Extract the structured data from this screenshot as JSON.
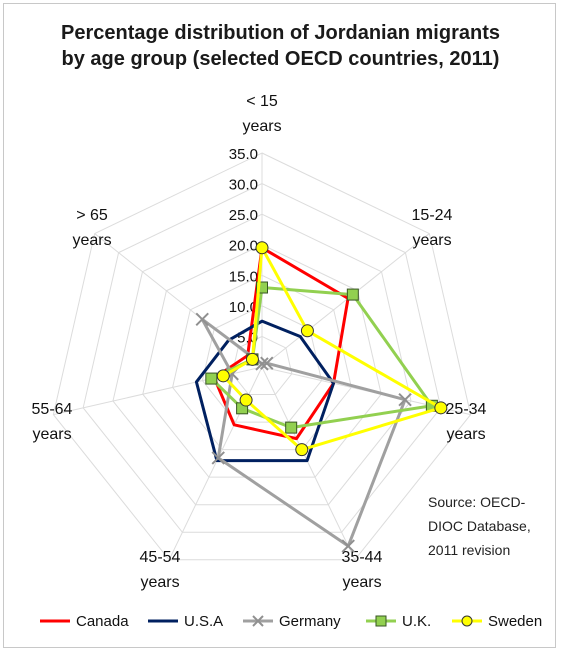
{
  "chart_data": {
    "type": "radar",
    "title_lines": [
      "Percentage distribution of Jordanian migrants",
      "by age group (selected OECD countries, 2011)"
    ],
    "axes": [
      {
        "lines": [
          "< 15",
          "years"
        ]
      },
      {
        "lines": [
          "15-24",
          "years"
        ]
      },
      {
        "lines": [
          "25-34",
          "years"
        ]
      },
      {
        "lines": [
          "35-44",
          "years"
        ]
      },
      {
        "lines": [
          "45-54",
          "years"
        ]
      },
      {
        "lines": [
          "55-64",
          "years"
        ]
      },
      {
        "lines": [
          "> 65",
          "years"
        ]
      }
    ],
    "rmax": 35,
    "ticks": [
      "5.0",
      "10.0",
      "15.0",
      "20.0",
      "25.0",
      "30.0",
      "35.0"
    ],
    "series": [
      {
        "name": "Canada",
        "color": "#ff0000",
        "marker": "none",
        "values": [
          19.5,
          18.0,
          12.0,
          13.0,
          10.5,
          8.0,
          3.0
        ]
      },
      {
        "name": "U.S.A",
        "color": "#002060",
        "marker": "none",
        "values": [
          7.5,
          8.0,
          12.0,
          17.0,
          17.0,
          11.0,
          7.0
        ]
      },
      {
        "name": "Germany",
        "color": "#a0a0a0",
        "marker": "x",
        "values": [
          0.5,
          1.0,
          24.0,
          32.5,
          16.5,
          5.0,
          12.5
        ]
      },
      {
        "name": "U.K.",
        "color": "#92d050",
        "marker": "square",
        "values": [
          13.0,
          19.0,
          28.5,
          11.0,
          7.5,
          8.5,
          2.0
        ]
      },
      {
        "name": "Sweden",
        "color": "#ffff00",
        "marker": "circle",
        "values": [
          19.5,
          9.5,
          30.0,
          15.0,
          6.0,
          6.5,
          2.0
        ]
      }
    ]
  },
  "source_lines": [
    "Source: OECD-",
    "DIOC Database,",
    "2011 revision"
  ]
}
